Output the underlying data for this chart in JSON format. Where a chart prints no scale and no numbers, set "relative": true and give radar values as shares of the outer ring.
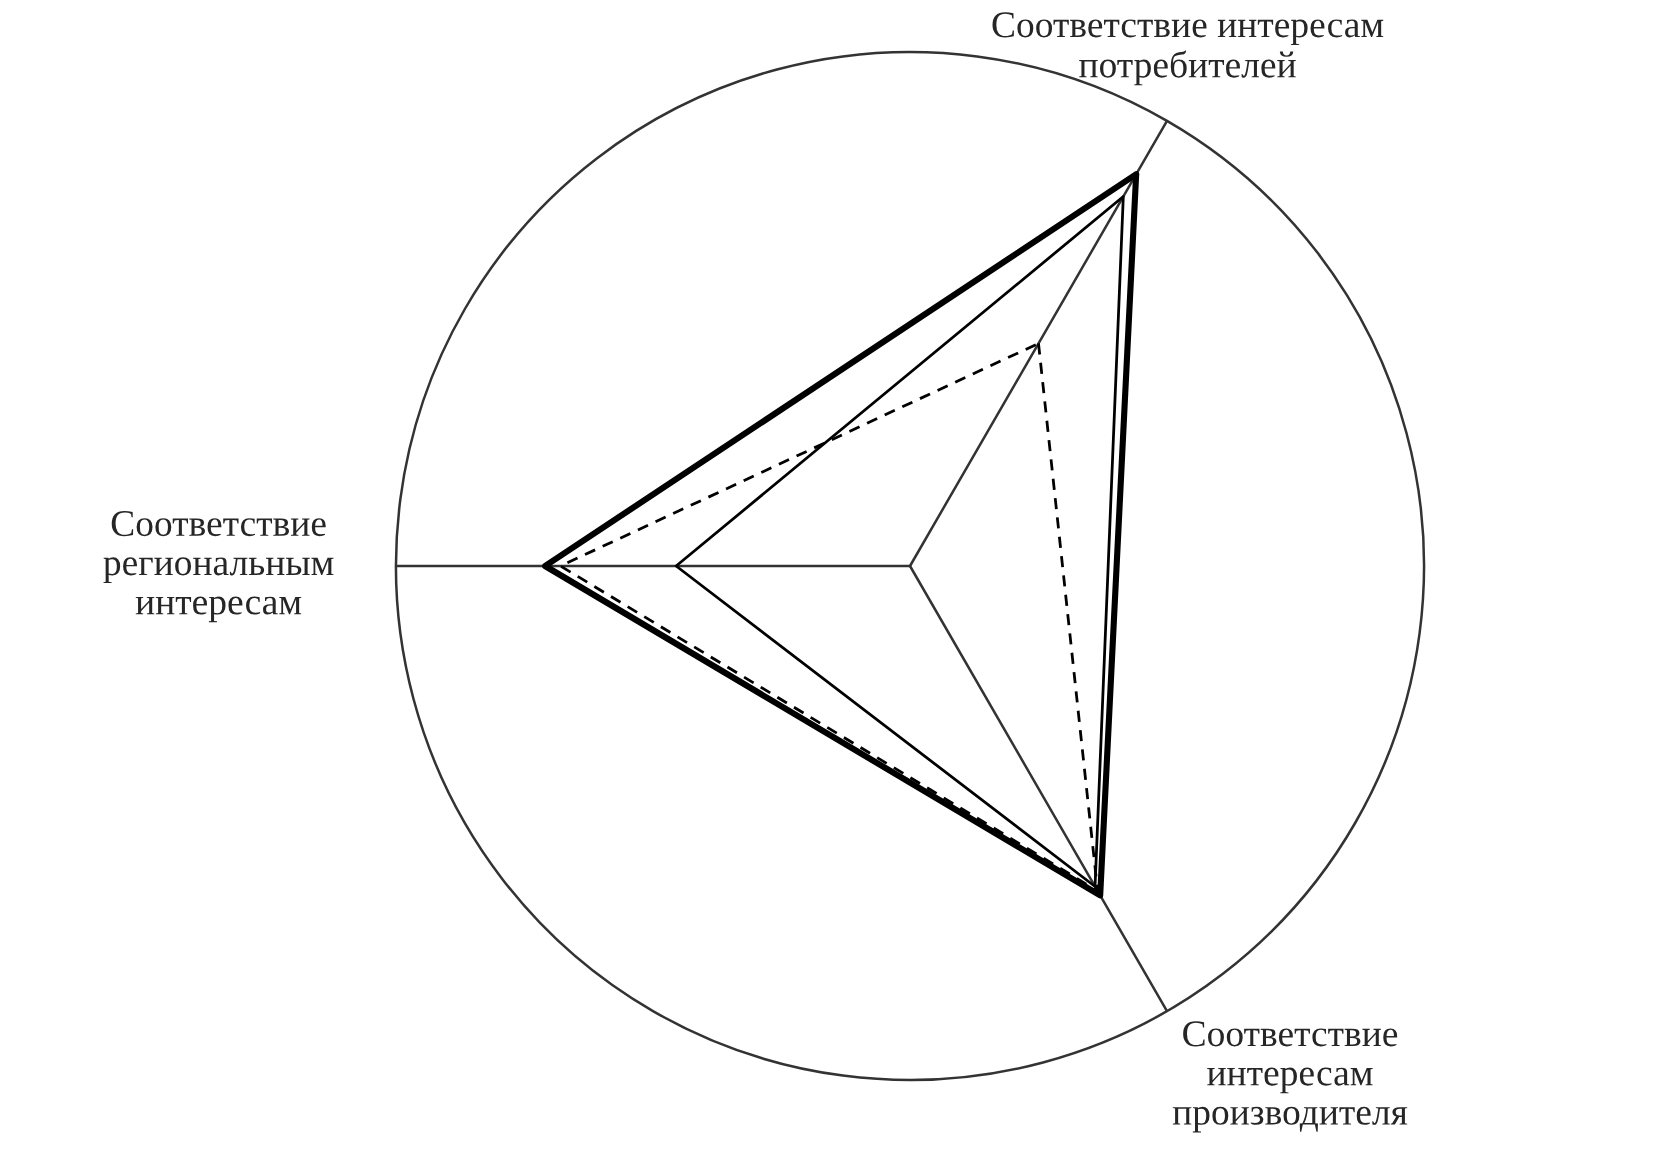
{
  "chart_data": {
    "type": "radar",
    "relative": true,
    "categories": [
      "Соответствие интересам\nпотребителей",
      "Соответствие\nинтересам\nпроизводителя",
      "Соответствие\nрегиональным\nинтересам"
    ],
    "series": [
      {
        "color": "#000000",
        "values": [
          0.88,
          0.74,
          0.71
        ],
        "line_style": "solid"
      },
      {
        "color": "#000000",
        "values": [
          0.83,
          0.72,
          0.455
        ],
        "line_style": "solid"
      },
      {
        "color": "#000000",
        "values": [
          0.5,
          0.73,
          0.68
        ],
        "line_style": "dashed"
      }
    ],
    "grid": "x",
    "marker": "none"
  }
}
